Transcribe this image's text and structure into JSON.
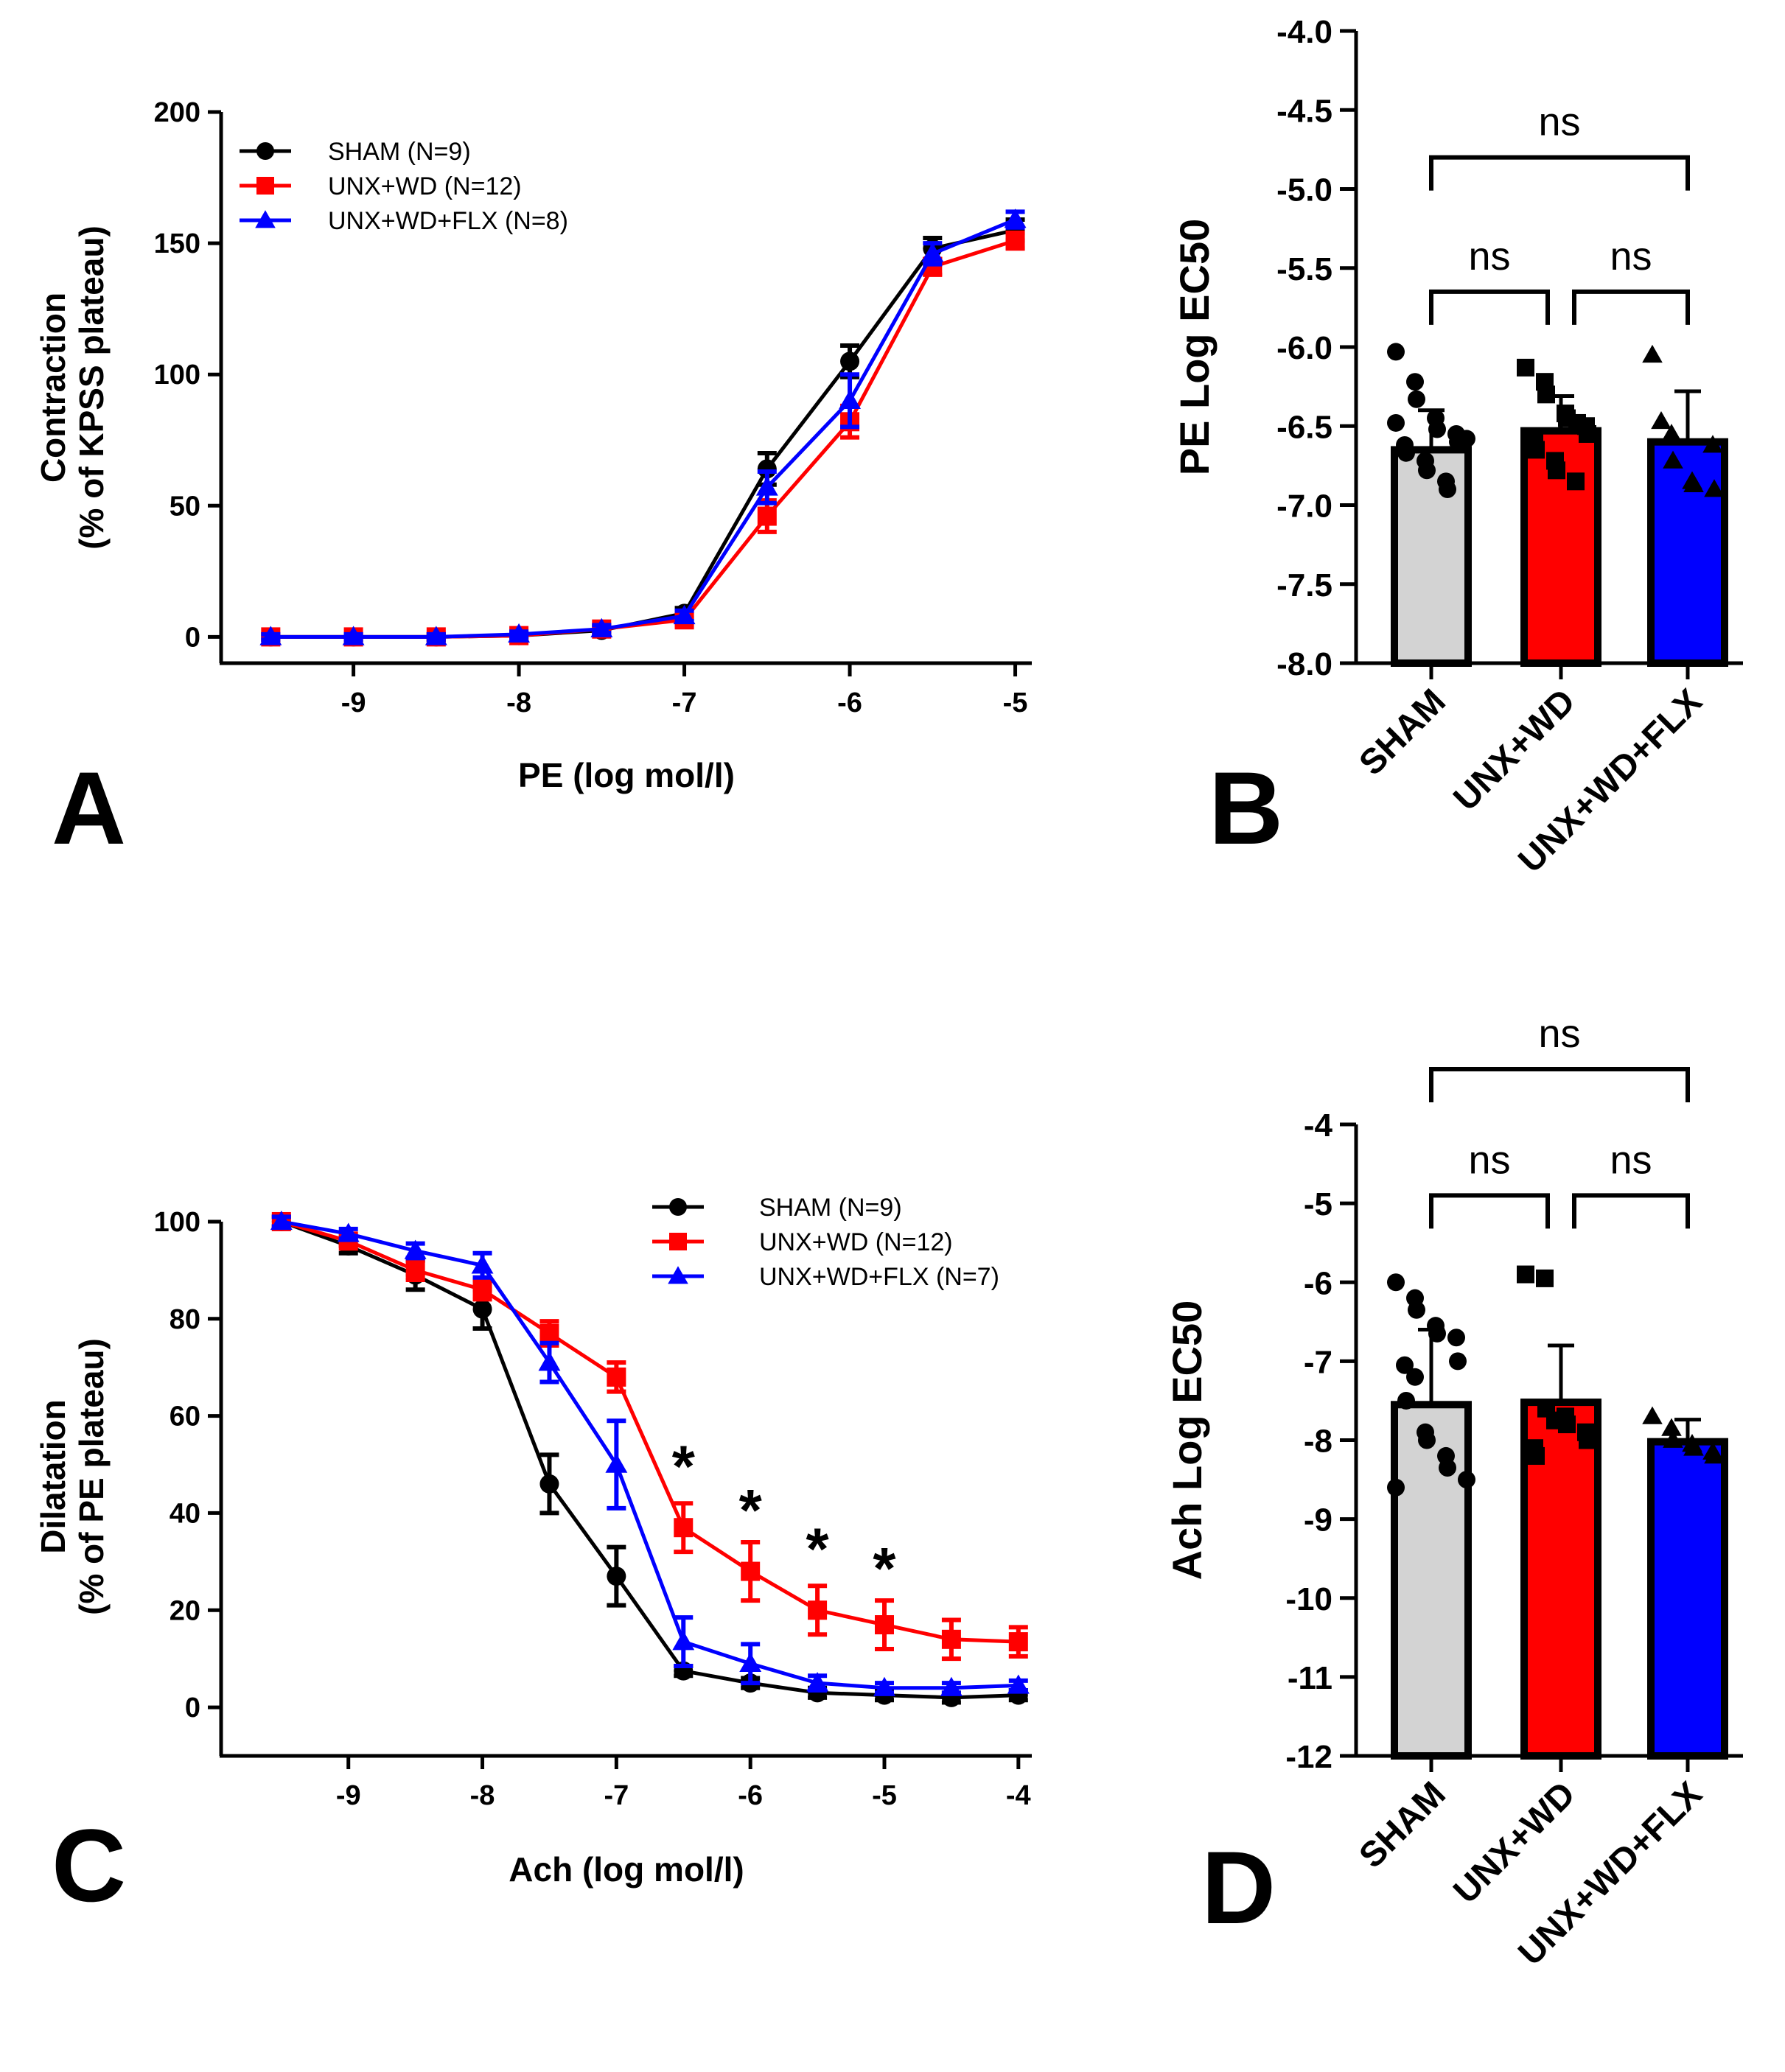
{
  "colors": {
    "sham": "#000000",
    "unx_wd": "#FF0000",
    "unx_wd_flx": "#0000FF",
    "sham_bar": "#D3D3D3"
  },
  "panels": {
    "A": "A",
    "B": "B",
    "C": "C",
    "D": "D"
  },
  "chart_data": [
    {
      "id": "A",
      "type": "line",
      "xlabel": "PE (log mol/l)",
      "ylabel_line1": "Contraction",
      "ylabel_line2": "(% of KPSS plateau)",
      "xlim": [
        -9.8,
        -4.9
      ],
      "ylim": [
        -10,
        200
      ],
      "xticks": [
        -9,
        -8,
        -7,
        -6,
        -5
      ],
      "yticks": [
        0,
        50,
        100,
        150,
        200
      ],
      "x": [
        -9.5,
        -9,
        -8.5,
        -8,
        -7.5,
        -7,
        -6.5,
        -6,
        -5.5,
        -5
      ],
      "series": [
        {
          "key": "sham",
          "name": "SHAM (N=9)",
          "marker": "circle",
          "values": [
            0,
            0,
            0,
            0.5,
            2.5,
            9,
            64,
            105,
            148,
            155
          ],
          "errors": [
            1,
            1,
            1,
            1,
            1.5,
            2,
            6,
            6,
            4,
            4
          ]
        },
        {
          "key": "unx_wd",
          "name": "UNX+WD (N=12)",
          "marker": "square",
          "values": [
            0,
            0,
            0,
            0.5,
            3,
            6.5,
            46,
            82,
            141,
            151
          ],
          "errors": [
            1,
            1,
            1,
            1,
            1.5,
            2,
            6,
            6,
            3,
            3
          ]
        },
        {
          "key": "unx_wd_flx",
          "name": "UNX+WD+FLX (N=8)",
          "marker": "triangle",
          "values": [
            0,
            0,
            0,
            1,
            3,
            8,
            57,
            90,
            146,
            159
          ],
          "errors": [
            1,
            1,
            1,
            1,
            1.5,
            2,
            6,
            10,
            4,
            3
          ]
        }
      ],
      "annotations": []
    },
    {
      "id": "C",
      "type": "line",
      "xlabel": "Ach (log mol/l)",
      "ylabel_line1": "Dilatation",
      "ylabel_line2": "(% of PE plateau)",
      "xlim": [
        -9.95,
        -3.9
      ],
      "ylim": [
        -10,
        105
      ],
      "xticks": [
        -9,
        -8,
        -7,
        -6,
        -5,
        -4
      ],
      "yticks": [
        0,
        20,
        40,
        60,
        80,
        100
      ],
      "x": [
        -9.5,
        -9,
        -8.5,
        -8,
        -7.5,
        -7,
        -6.5,
        -6,
        -5.5,
        -5,
        -4.5,
        -4
      ],
      "series": [
        {
          "key": "sham",
          "name": "SHAM (N=9)",
          "marker": "circle",
          "values": [
            100,
            95,
            89,
            82,
            46,
            27,
            7.5,
            5,
            3,
            2.5,
            2,
            2.5
          ],
          "errors": [
            1,
            1.5,
            3,
            4,
            6,
            6,
            1,
            1,
            1,
            1,
            1,
            1
          ]
        },
        {
          "key": "unx_wd",
          "name": "UNX+WD (N=12)",
          "marker": "square",
          "values": [
            100,
            96,
            90,
            86,
            77,
            68,
            37,
            28,
            20,
            17,
            14,
            13.5
          ],
          "errors": [
            1,
            1,
            2,
            2,
            2.5,
            3,
            5,
            6,
            5,
            5,
            4,
            3
          ]
        },
        {
          "key": "unx_wd_flx",
          "name": "UNX+WD+FLX (N=7)",
          "marker": "triangle",
          "values": [
            100,
            97.5,
            94,
            91,
            71,
            50,
            13.5,
            9,
            5,
            4,
            4,
            4.5
          ],
          "errors": [
            1,
            1,
            1.5,
            2.5,
            4,
            9,
            5,
            4,
            1.5,
            1,
            1,
            1
          ]
        }
      ],
      "annotations": [
        {
          "x": -6.5,
          "y": 50,
          "text": "*"
        },
        {
          "x": -6.0,
          "y": 41,
          "text": "*"
        },
        {
          "x": -5.5,
          "y": 33,
          "text": "*"
        },
        {
          "x": -5.0,
          "y": 29,
          "text": "*"
        }
      ]
    },
    {
      "id": "B",
      "type": "bar",
      "ylabel": "PE Log EC50",
      "ylim": [
        -8.0,
        -4.0
      ],
      "yticks": [
        -4.0,
        -4.5,
        -5.0,
        -5.5,
        -6.0,
        -6.5,
        -7.0,
        -7.5,
        -8.0
      ],
      "tick_decimals": 1,
      "categories": [
        "SHAM",
        "UNX+WD",
        "UNX+WD+FLX"
      ],
      "values": [
        -6.65,
        -6.53,
        -6.6
      ],
      "errors": [
        0.25,
        0.22,
        0.32
      ],
      "points": [
        [
          -6.03,
          -6.22,
          -6.33,
          -6.45,
          -6.52,
          -6.55,
          -6.6,
          -6.62,
          -6.67,
          -6.72,
          -6.78,
          -6.85,
          -6.9,
          -6.58,
          -6.48
        ],
        [
          -6.13,
          -6.22,
          -6.3,
          -6.42,
          -6.45,
          -6.5,
          -6.55,
          -6.6,
          -6.65,
          -6.72,
          -6.78,
          -6.85,
          -6.48
        ],
        [
          -6.05,
          -6.55,
          -6.72,
          -6.85,
          -6.87,
          -6.62,
          -6.9,
          -6.47
        ]
      ],
      "brackets": [
        {
          "from": 0,
          "to": 2,
          "label": "ns",
          "y": -4.8
        },
        {
          "from": 0,
          "to": 1,
          "label": "ns",
          "y": -5.65
        },
        {
          "from": 1,
          "to": 2,
          "label": "ns",
          "y": -5.65
        }
      ]
    },
    {
      "id": "D",
      "type": "bar",
      "ylabel": "Ach Log EC50",
      "ylim": [
        -12,
        -4
      ],
      "yticks": [
        -4,
        -5,
        -6,
        -7,
        -8,
        -9,
        -10,
        -11,
        -12
      ],
      "tick_decimals": 0,
      "categories": [
        "SHAM",
        "UNX+WD",
        "UNX+WD+FLX"
      ],
      "values": [
        -7.55,
        -7.52,
        -8.02
      ],
      "errors": [
        0.95,
        0.72,
        0.28
      ],
      "points": [
        [
          -6.0,
          -6.2,
          -6.35,
          -6.55,
          -6.65,
          -6.7,
          -7.0,
          -7.05,
          -7.5,
          -7.9,
          -8.0,
          -8.2,
          -8.35,
          -8.5,
          -8.6,
          -7.2
        ],
        [
          -5.9,
          -5.95,
          -7.6,
          -7.7,
          -7.8,
          -7.9,
          -8.0,
          -8.1,
          -8.2,
          -7.75
        ],
        [
          -7.7,
          -7.85,
          -8.0,
          -8.05,
          -8.1,
          -8.15,
          -8.2
        ]
      ],
      "brackets": [
        {
          "from": 0,
          "to": 2,
          "label": "ns",
          "y": -3.3
        },
        {
          "from": 0,
          "to": 1,
          "label": "ns",
          "y": -4.9
        },
        {
          "from": 1,
          "to": 2,
          "label": "ns",
          "y": -4.9
        }
      ]
    }
  ]
}
